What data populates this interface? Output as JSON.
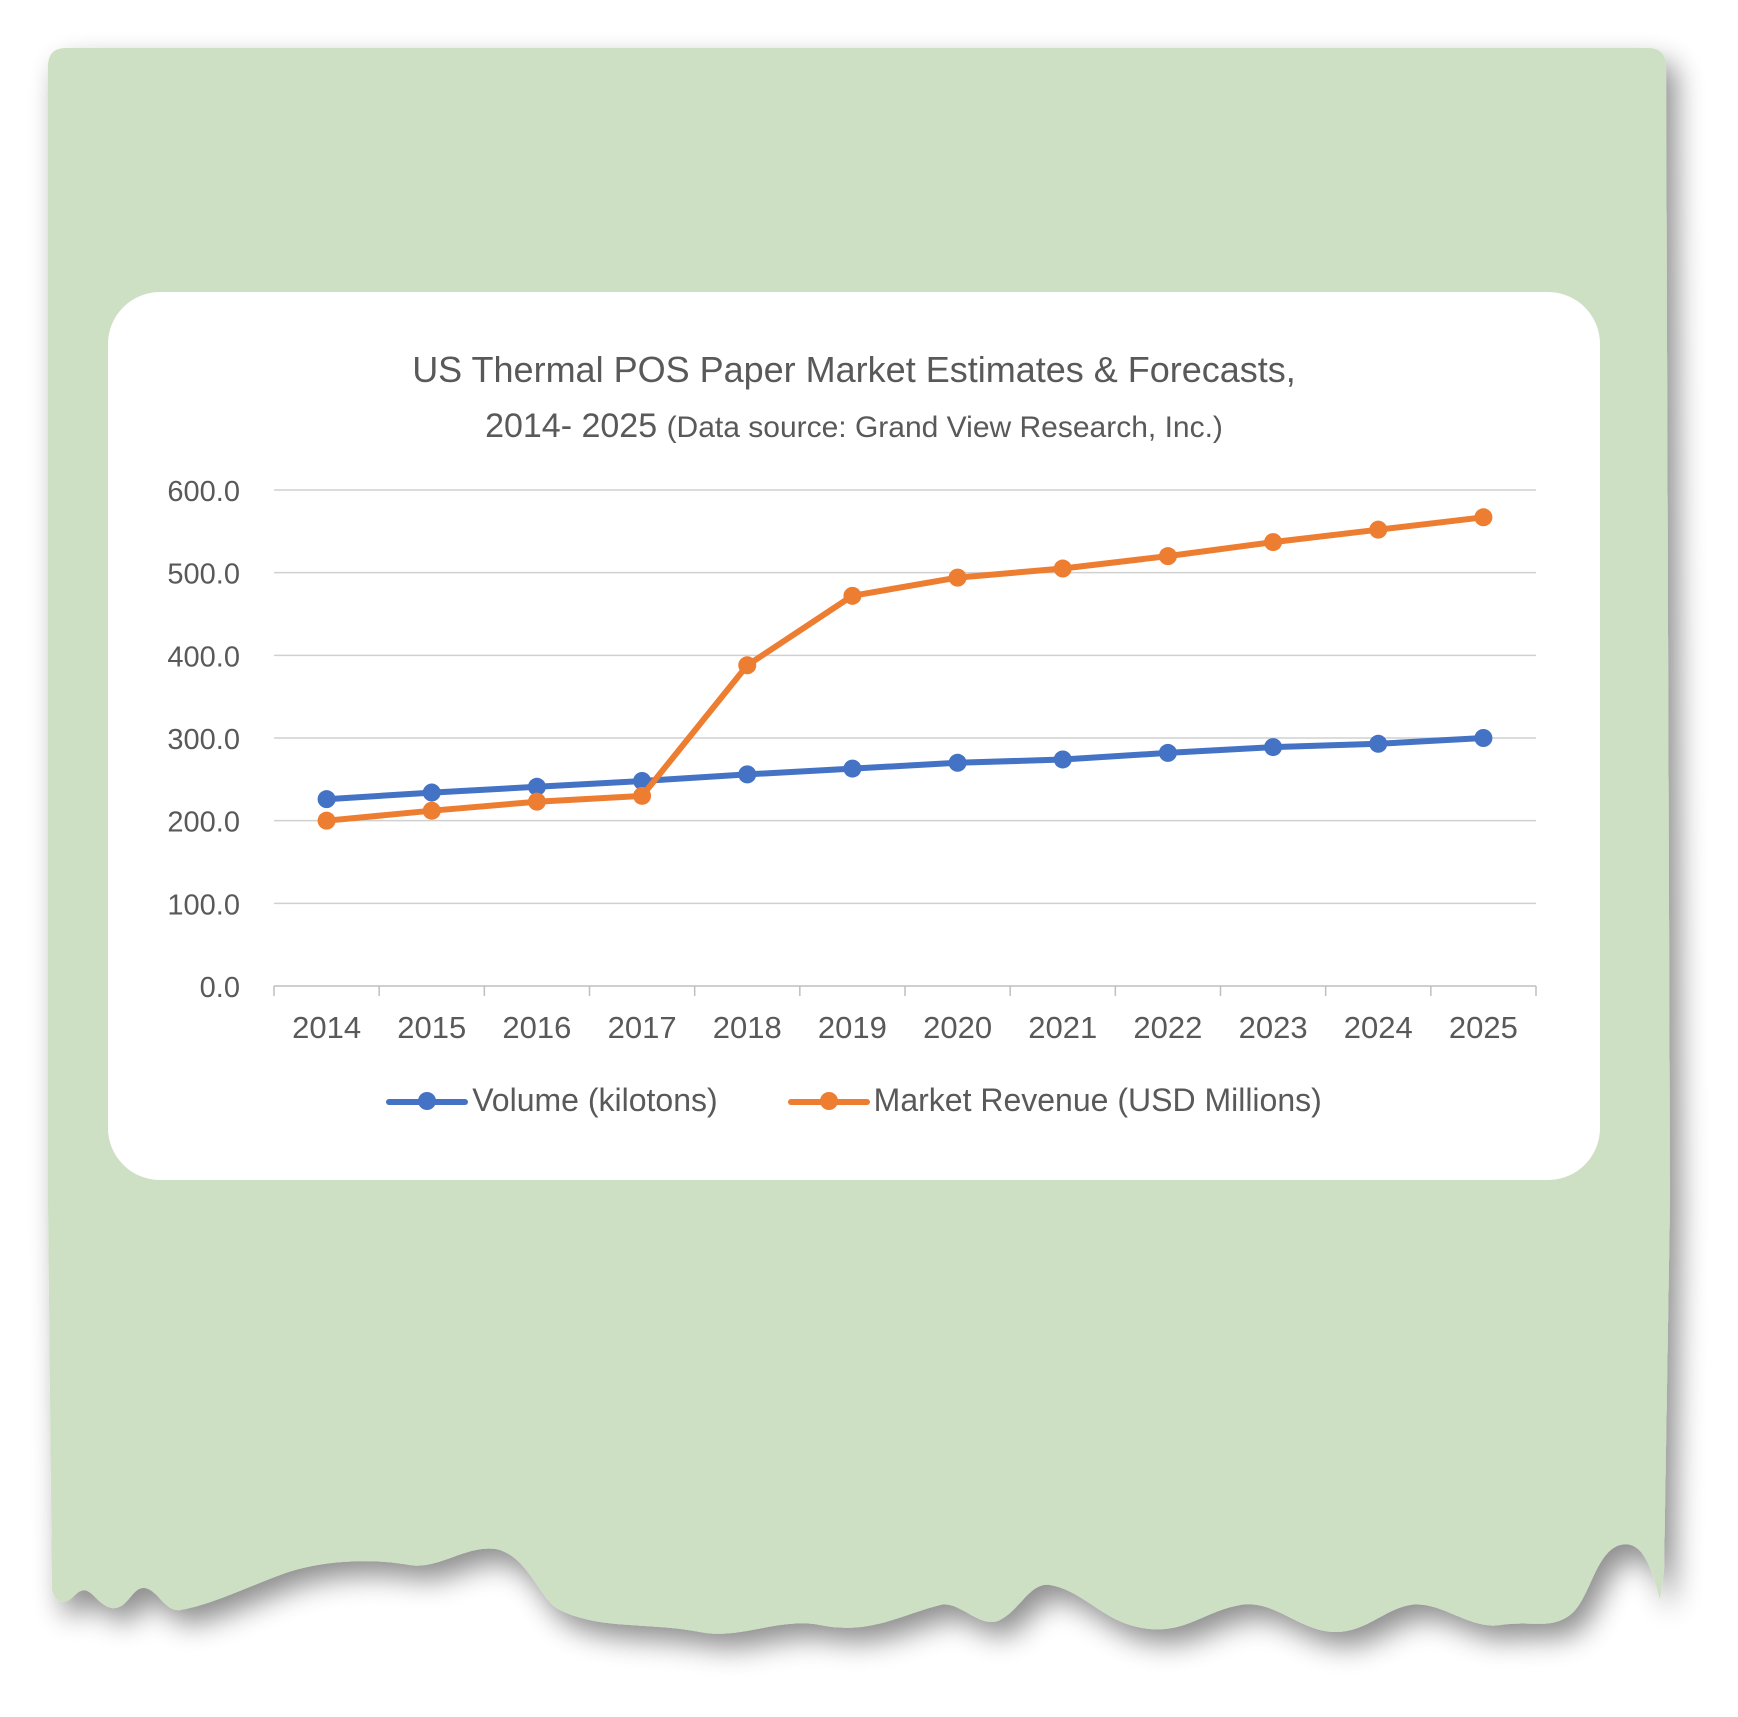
{
  "chart_data": {
    "type": "line",
    "title_line1": "US Thermal POS Paper Market Estimates & Forecasts,",
    "title_line2": "2014-  2025",
    "title_source": "(Data source: Grand View Research, Inc.)",
    "xlabel": "",
    "ylabel": "",
    "categories": [
      "2014",
      "2015",
      "2016",
      "2017",
      "2018",
      "2019",
      "2020",
      "2021",
      "2022",
      "2023",
      "2024",
      "2025"
    ],
    "yticks": [
      "0.0",
      "100.0",
      "200.0",
      "300.0",
      "400.0",
      "500.0",
      "600.0"
    ],
    "ylim": [
      0,
      600
    ],
    "grid": true,
    "legend_position": "bottom",
    "series": [
      {
        "name": "Volume (kilotons)",
        "color": "#4472c4",
        "values": [
          226,
          234,
          241,
          248,
          256,
          263,
          270,
          274,
          282,
          289,
          293,
          300
        ]
      },
      {
        "name": "Market Revenue (USD Millions)",
        "color": "#ed7d31",
        "values": [
          200,
          212,
          223,
          230,
          388,
          472,
          494,
          505,
          520,
          537,
          552,
          567
        ]
      }
    ]
  }
}
